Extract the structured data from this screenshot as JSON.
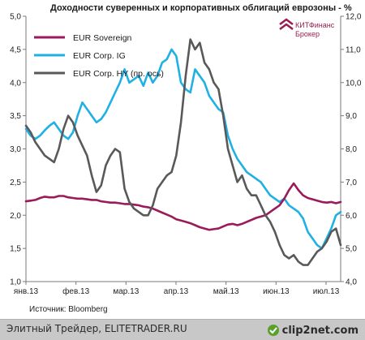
{
  "chart_data": {
    "type": "line",
    "title": "Доходности  суверенных и корпоративных облигаций еврозоны - %",
    "x_labels": [
      "янв.13",
      "фев.13",
      "мар.13",
      "апр.13",
      "май.13",
      "июн.13",
      "июл.13"
    ],
    "y_left": {
      "min": 1.0,
      "max": 5.0,
      "ticks": [
        "1,0",
        "1,5",
        "2,0",
        "2,5",
        "3,0",
        "3,5",
        "4,0",
        "4,5",
        "5,0"
      ]
    },
    "y_right": {
      "min": 4.0,
      "max": 12.0,
      "ticks": [
        "4,0",
        "5,0",
        "6,0",
        "7,0",
        "8,0",
        "9,0",
        "10,0",
        "11,0",
        "12,0"
      ]
    },
    "grid": false,
    "legend_position": "top-left",
    "series": [
      {
        "name": "EUR Sovereign",
        "axis": "left",
        "color": "#9a1b5a",
        "values": [
          2.21,
          2.22,
          2.23,
          2.26,
          2.28,
          2.27,
          2.27,
          2.29,
          2.29,
          2.27,
          2.26,
          2.25,
          2.25,
          2.24,
          2.23,
          2.23,
          2.21,
          2.2,
          2.19,
          2.19,
          2.18,
          2.17,
          2.17,
          2.16,
          2.15,
          2.13,
          2.12,
          2.1,
          2.07,
          2.04,
          2.01,
          1.98,
          1.94,
          1.92,
          1.9,
          1.88,
          1.85,
          1.82,
          1.8,
          1.78,
          1.79,
          1.8,
          1.83,
          1.86,
          1.87,
          1.85,
          1.87,
          1.9,
          1.93,
          1.96,
          1.98,
          2.0,
          2.05,
          2.1,
          2.15,
          2.25,
          2.38,
          2.48,
          2.38,
          2.3,
          2.26,
          2.24,
          2.22,
          2.2,
          2.19,
          2.2,
          2.18,
          2.2
        ]
      },
      {
        "name": "EUR Corp. IG",
        "axis": "left",
        "color": "#1fb1e3",
        "values": [
          3.3,
          3.2,
          3.15,
          3.2,
          3.28,
          3.35,
          3.4,
          3.3,
          3.2,
          3.15,
          3.25,
          3.5,
          3.7,
          3.6,
          3.5,
          3.4,
          3.45,
          3.55,
          3.7,
          3.85,
          4.0,
          4.2,
          4.0,
          4.05,
          4.1,
          3.95,
          4.15,
          4.0,
          4.1,
          4.3,
          4.35,
          4.5,
          4.4,
          4.0,
          3.9,
          3.85,
          4.2,
          4.1,
          4.0,
          3.8,
          3.7,
          3.6,
          3.55,
          3.2,
          3.0,
          2.85,
          2.75,
          2.65,
          2.6,
          2.55,
          2.5,
          2.4,
          2.3,
          2.25,
          2.2,
          2.25,
          2.15,
          2.1,
          2.05,
          1.95,
          1.75,
          1.65,
          1.55,
          1.5,
          1.65,
          1.8,
          2.0,
          2.05
        ]
      },
      {
        "name": "EUR Corp. HY (пр. ось)",
        "axis": "right",
        "color": "#595959",
        "values": [
          8.7,
          8.5,
          8.2,
          8.0,
          7.8,
          7.7,
          7.6,
          8.0,
          8.6,
          9.0,
          8.8,
          8.4,
          8.1,
          7.8,
          7.2,
          6.7,
          6.9,
          7.5,
          7.8,
          8.0,
          7.9,
          6.8,
          6.4,
          6.2,
          6.1,
          6.0,
          6.0,
          6.3,
          6.8,
          7.0,
          7.2,
          7.3,
          7.8,
          8.8,
          10.2,
          11.3,
          11.0,
          11.2,
          10.6,
          10.4,
          10.0,
          9.8,
          9.0,
          8.0,
          7.5,
          7.0,
          7.2,
          6.8,
          6.6,
          6.6,
          6.3,
          6.0,
          5.8,
          5.5,
          5.1,
          4.8,
          4.7,
          4.8,
          4.6,
          4.5,
          4.5,
          4.7,
          4.9,
          5.0,
          5.2,
          5.5,
          5.6,
          5.1
        ]
      }
    ]
  },
  "source_label": "Источник: Bloomberg",
  "logo": {
    "name": "КИТФинанс",
    "sub": "Брокер"
  },
  "footer": {
    "text": "Элитный Трейдер, ELITETRADER.RU",
    "brand": "clip2net.com"
  }
}
